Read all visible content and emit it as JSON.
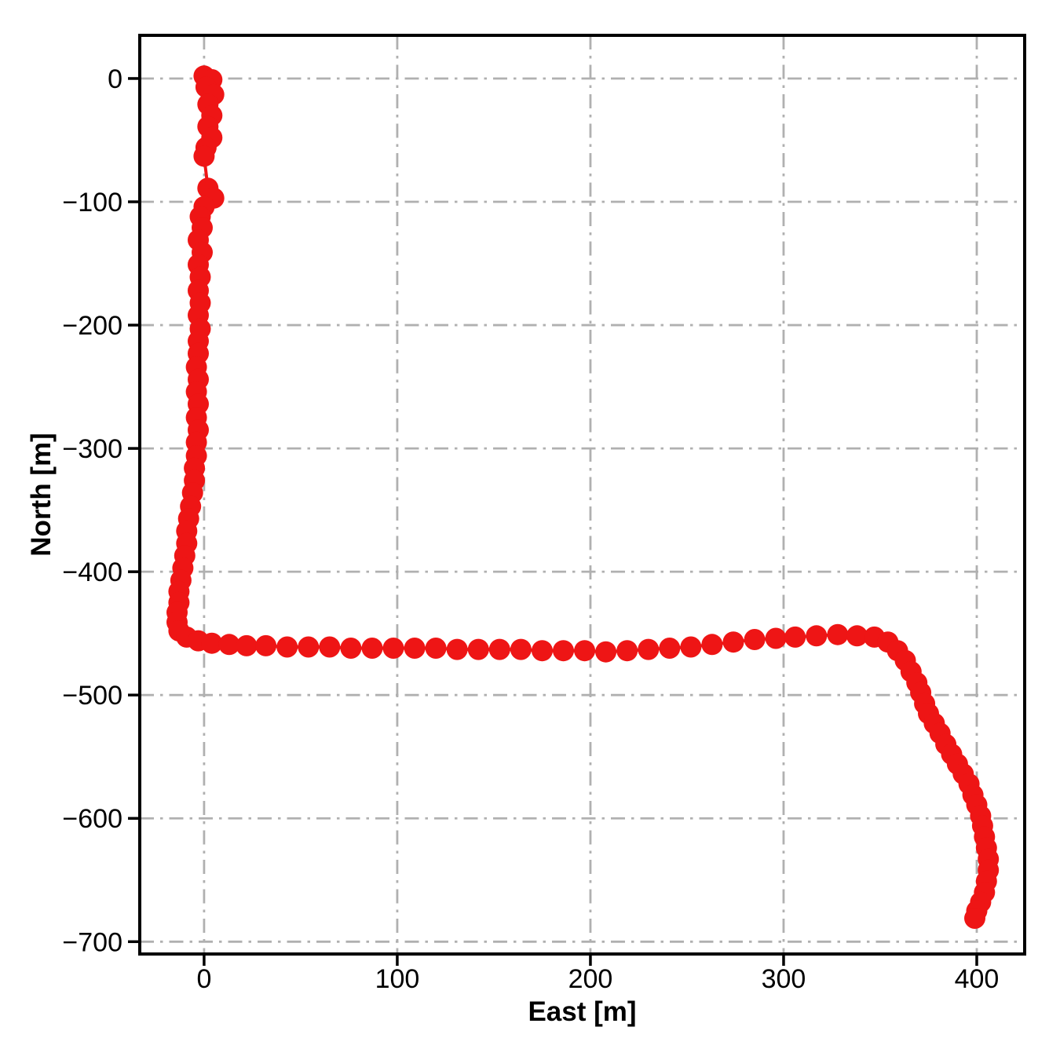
{
  "figure": {
    "background": "#ffffff"
  },
  "chart_data": {
    "type": "scatter",
    "title": "",
    "xlabel": "East [m]",
    "ylabel": "North [m]",
    "xlim": [
      -33.3,
      424.8
    ],
    "ylim": [
      -710,
      35
    ],
    "xticks": [
      0,
      100,
      200,
      300,
      400
    ],
    "yticks": [
      0,
      -100,
      -200,
      -300,
      -400,
      -500,
      -600,
      -700
    ],
    "grid": true,
    "grid_style": "dashdot",
    "grid_color": "#b0b0b0",
    "spine_color": "#000000",
    "legend_position": "none",
    "marker": "circle",
    "marker_color": "#ee1515",
    "line_color": "#ee1515",
    "series": [
      {
        "name": "vehicle-trajectory",
        "points": [
          [
            0,
            2
          ],
          [
            4,
            -1
          ],
          [
            1,
            -7
          ],
          [
            5,
            -13
          ],
          [
            2,
            -21
          ],
          [
            4,
            -30
          ],
          [
            2,
            -39
          ],
          [
            4,
            -48
          ],
          [
            1,
            -56
          ],
          [
            0,
            -63
          ],
          [
            2,
            -89
          ],
          [
            5,
            -97
          ],
          [
            0,
            -104
          ],
          [
            -2,
            -112
          ],
          [
            -1,
            -121
          ],
          [
            -3,
            -131
          ],
          [
            -1,
            -141
          ],
          [
            -3,
            -151
          ],
          [
            -2,
            -161
          ],
          [
            -3,
            -172
          ],
          [
            -2,
            -182
          ],
          [
            -3,
            -192
          ],
          [
            -2,
            -203
          ],
          [
            -3,
            -213
          ],
          [
            -3,
            -223
          ],
          [
            -4,
            -234
          ],
          [
            -3,
            -244
          ],
          [
            -4,
            -254
          ],
          [
            -3,
            -264
          ],
          [
            -4,
            -275
          ],
          [
            -3,
            -285
          ],
          [
            -4,
            -295
          ],
          [
            -4,
            -306
          ],
          [
            -5,
            -316
          ],
          [
            -5,
            -326
          ],
          [
            -6,
            -336
          ],
          [
            -7,
            -347
          ],
          [
            -8,
            -357
          ],
          [
            -9,
            -367
          ],
          [
            -9,
            -377
          ],
          [
            -10,
            -387
          ],
          [
            -11,
            -397
          ],
          [
            -12,
            -407
          ],
          [
            -13,
            -416
          ],
          [
            -13,
            -425
          ],
          [
            -14,
            -433
          ],
          [
            -14,
            -441
          ],
          [
            -13,
            -448
          ],
          [
            -9,
            -453
          ],
          [
            -3,
            -456
          ],
          [
            4,
            -458
          ],
          [
            13,
            -459
          ],
          [
            22,
            -460
          ],
          [
            32,
            -460
          ],
          [
            43,
            -461
          ],
          [
            54,
            -461
          ],
          [
            65,
            -461
          ],
          [
            76,
            -462
          ],
          [
            87,
            -462
          ],
          [
            98,
            -462
          ],
          [
            109,
            -462
          ],
          [
            120,
            -462
          ],
          [
            131,
            -463
          ],
          [
            142,
            -463
          ],
          [
            153,
            -463
          ],
          [
            164,
            -463
          ],
          [
            175,
            -464
          ],
          [
            186,
            -464
          ],
          [
            197,
            -464
          ],
          [
            208,
            -465
          ],
          [
            219,
            -464
          ],
          [
            230,
            -463
          ],
          [
            241,
            -462
          ],
          [
            252,
            -461
          ],
          [
            263,
            -459
          ],
          [
            274,
            -457
          ],
          [
            285,
            -455
          ],
          [
            296,
            -454
          ],
          [
            306,
            -453
          ],
          [
            317,
            -452
          ],
          [
            328,
            -451
          ],
          [
            338,
            -452
          ],
          [
            347,
            -453
          ],
          [
            354,
            -457
          ],
          [
            359,
            -464
          ],
          [
            363,
            -472
          ],
          [
            366,
            -481
          ],
          [
            369,
            -490
          ],
          [
            371,
            -498
          ],
          [
            373,
            -507
          ],
          [
            375,
            -515
          ],
          [
            378,
            -523
          ],
          [
            381,
            -531
          ],
          [
            384,
            -540
          ],
          [
            387,
            -548
          ],
          [
            390,
            -556
          ],
          [
            393,
            -564
          ],
          [
            396,
            -572
          ],
          [
            398,
            -581
          ],
          [
            400,
            -589
          ],
          [
            402,
            -598
          ],
          [
            403,
            -606
          ],
          [
            404,
            -615
          ],
          [
            405,
            -624
          ],
          [
            406,
            -633
          ],
          [
            406,
            -642
          ],
          [
            405,
            -651
          ],
          [
            404,
            -660
          ],
          [
            402,
            -668
          ],
          [
            400,
            -675
          ],
          [
            399,
            -681
          ]
        ]
      }
    ]
  }
}
